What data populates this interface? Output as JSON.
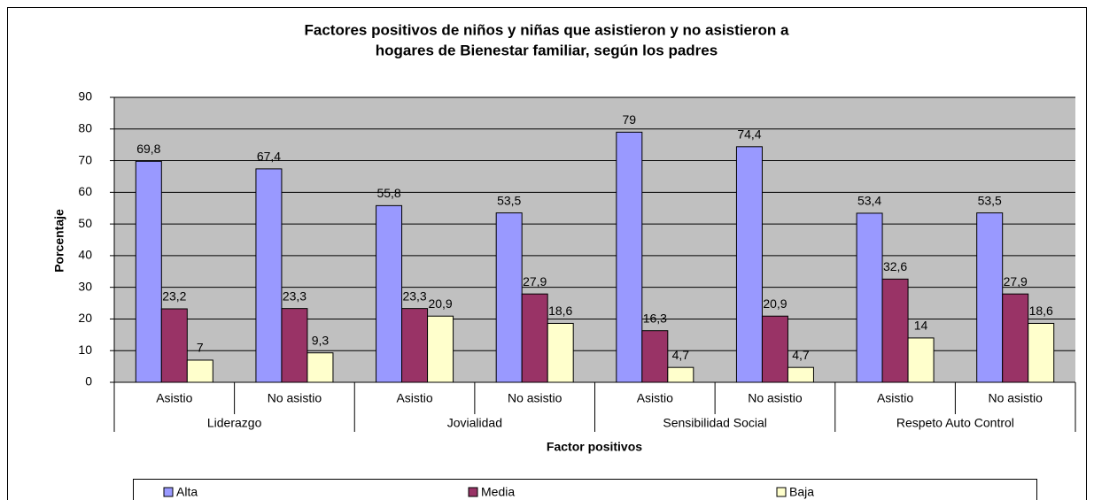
{
  "chart_data": {
    "type": "bar",
    "title": [
      "Factores positivos de niños y niñas que asistieron y no asistieron a",
      "hogares de Bienestar familiar, según los padres"
    ],
    "y_label": "Porcentaje",
    "x_label": "Factor positivos",
    "categories": [
      "Asistio",
      "No asistio",
      "Asistio",
      "No asistio",
      "Asistio",
      "No asistio",
      "Asistio",
      "No asistio"
    ],
    "groups": [
      "Liderazgo",
      "Jovialidad",
      "Sensibilidad Social",
      "Respeto Auto Control"
    ],
    "series": [
      {
        "name": "Alta",
        "color": "#9999ff",
        "values": [
          69.8,
          67.4,
          55.8,
          53.5,
          79,
          74.4,
          53.4,
          53.5
        ],
        "value_labels": [
          "69,8",
          "67,4",
          "55,8",
          "53,5",
          "79",
          "74,4",
          "53,4",
          "53,5"
        ]
      },
      {
        "name": "Media",
        "color": "#993366",
        "values": [
          23.2,
          23.3,
          23.3,
          27.9,
          16.3,
          20.9,
          32.6,
          27.9
        ],
        "value_labels": [
          "23,2",
          "23,3",
          "23,3",
          "27,9",
          "16,3",
          "20,9",
          "32,6",
          "27,9"
        ]
      },
      {
        "name": "Baja",
        "color": "#ffffcc",
        "values": [
          7,
          9.3,
          20.9,
          18.6,
          4.7,
          4.7,
          14,
          18.6
        ],
        "value_labels": [
          "7",
          "9,3",
          "20,9",
          "18,6",
          "4,7",
          "4,7",
          "14",
          "18,6"
        ]
      }
    ],
    "ylim": [
      0,
      90
    ],
    "yticks": [
      0,
      10,
      20,
      30,
      40,
      50,
      60,
      70,
      80,
      90
    ],
    "grid": true,
    "legend": "bottom"
  }
}
